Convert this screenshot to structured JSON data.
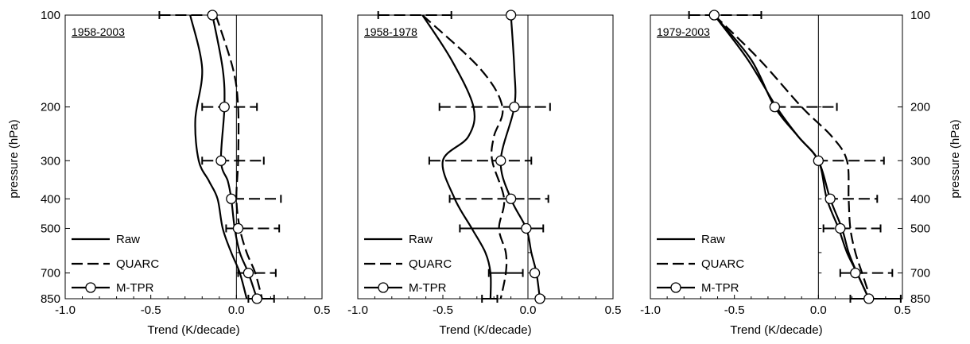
{
  "figure": {
    "left_ylabel": "pressure (hPa)",
    "right_ylabel": "pressure (hPa)",
    "xlabel": "Trend (K/decade)"
  },
  "chart_data": [
    {
      "type": "line",
      "title": "1958-2003",
      "xlabel": "Trend (K/decade)",
      "ylabel": "pressure (hPa)",
      "xlim": [
        -1.0,
        0.5
      ],
      "ylim": [
        100,
        850
      ],
      "y_scale": "log",
      "x_ticks": [
        -1.0,
        -0.5,
        0.0,
        0.5
      ],
      "x_tick_labels": [
        "-1.0",
        "-0.5",
        "0.0",
        "0.5"
      ],
      "y_ticks": [
        100,
        200,
        300,
        400,
        500,
        700,
        850
      ],
      "y_tick_labels": [
        "100",
        "200",
        "300",
        "400",
        "500",
        "700",
        "850"
      ],
      "reference_line_x": 0,
      "legend": "bottom-left",
      "series": [
        {
          "name": "Raw",
          "style": "solid",
          "x": [
            -0.27,
            -0.2,
            -0.24,
            -0.22,
            -0.16,
            -0.11,
            -0.08,
            -0.03,
            0.02,
            0.06
          ],
          "y": [
            100,
            150,
            220,
            300,
            350,
            400,
            500,
            600,
            700,
            850
          ]
        },
        {
          "name": "QUARC",
          "style": "dashed",
          "x": [
            -0.12,
            -0.02,
            0.01,
            0.01,
            0.0,
            0.02,
            0.06,
            0.11,
            0.15
          ],
          "y": [
            100,
            150,
            200,
            300,
            400,
            500,
            600,
            700,
            850
          ]
        },
        {
          "name": "M-TPR",
          "style": "line-circle",
          "x": [
            -0.14,
            -0.08,
            -0.07,
            -0.09,
            -0.05,
            -0.03,
            -0.01,
            0.02,
            0.07,
            0.12
          ],
          "y": [
            100,
            150,
            200,
            300,
            350,
            400,
            500,
            600,
            700,
            850
          ]
        }
      ],
      "error_bars": [
        {
          "y": 100,
          "x": [
            -0.45,
            -0.14
          ],
          "style": "dashed"
        },
        {
          "y": 200,
          "x": [
            -0.2,
            0.12
          ],
          "style": "dashed"
        },
        {
          "y": 300,
          "x": [
            -0.2,
            0.16
          ],
          "style": "dashed"
        },
        {
          "y": 400,
          "x": [
            -0.02,
            0.26
          ],
          "style": "dashed"
        },
        {
          "y": 500,
          "x": [
            -0.06,
            0.25
          ],
          "style": "dashed"
        },
        {
          "y": 700,
          "x": [
            0.01,
            0.23
          ],
          "style": "dashed"
        },
        {
          "y": 850,
          "x": [
            0.07,
            0.22
          ],
          "style": "solid"
        }
      ],
      "markers": [
        {
          "x": -0.14,
          "y": 100
        },
        {
          "x": -0.07,
          "y": 200
        },
        {
          "x": -0.09,
          "y": 300
        },
        {
          "x": -0.03,
          "y": 400
        },
        {
          "x": 0.01,
          "y": 500
        },
        {
          "x": 0.07,
          "y": 700
        },
        {
          "x": 0.12,
          "y": 850
        }
      ]
    },
    {
      "type": "line",
      "title": "1958-1978",
      "xlabel": "Trend (K/decade)",
      "ylabel": "",
      "xlim": [
        -1.0,
        0.5
      ],
      "ylim": [
        100,
        850
      ],
      "y_scale": "log",
      "x_ticks": [
        -1.0,
        -0.5,
        0.0,
        0.5
      ],
      "x_tick_labels": [
        "-1.0",
        "-0.5",
        "0.0",
        "0.5"
      ],
      "reference_line_x": 0,
      "legend": "bottom-left",
      "series": [
        {
          "name": "Raw",
          "style": "solid",
          "x": [
            -0.62,
            -0.45,
            -0.32,
            -0.35,
            -0.5,
            -0.43,
            -0.33,
            -0.25,
            -0.22,
            -0.22
          ],
          "y": [
            100,
            140,
            200,
            250,
            300,
            400,
            500,
            600,
            700,
            850
          ]
        },
        {
          "name": "QUARC",
          "style": "dashed",
          "x": [
            -0.62,
            -0.28,
            -0.15,
            -0.2,
            -0.21,
            -0.14,
            -0.17,
            -0.13,
            -0.13,
            -0.16
          ],
          "y": [
            100,
            150,
            200,
            250,
            300,
            400,
            500,
            600,
            700,
            850
          ]
        },
        {
          "name": "M-TPR",
          "style": "line-circle",
          "x": [
            -0.1,
            -0.08,
            -0.08,
            -0.16,
            -0.1,
            -0.01,
            0.02,
            0.05,
            0.07
          ],
          "y": [
            100,
            150,
            200,
            300,
            400,
            500,
            600,
            700,
            850
          ]
        }
      ],
      "error_bars": [
        {
          "y": 100,
          "x": [
            -0.88,
            -0.45
          ],
          "style": "dashed"
        },
        {
          "y": 200,
          "x": [
            -0.52,
            0.13
          ],
          "style": "dashed"
        },
        {
          "y": 300,
          "x": [
            -0.58,
            0.02
          ],
          "style": "dashed"
        },
        {
          "y": 400,
          "x": [
            -0.46,
            0.12
          ],
          "style": "dashed"
        },
        {
          "y": 500,
          "x": [
            -0.4,
            0.09
          ],
          "style": "solid"
        },
        {
          "y": 700,
          "x": [
            -0.23,
            -0.03
          ],
          "style": "solid"
        },
        {
          "y": 850,
          "x": [
            -0.27,
            -0.18
          ],
          "style": "solid"
        }
      ],
      "markers": [
        {
          "x": -0.1,
          "y": 100
        },
        {
          "x": -0.08,
          "y": 200
        },
        {
          "x": -0.16,
          "y": 300
        },
        {
          "x": -0.1,
          "y": 400
        },
        {
          "x": -0.01,
          "y": 500
        },
        {
          "x": 0.04,
          "y": 700
        },
        {
          "x": 0.07,
          "y": 850
        }
      ]
    },
    {
      "type": "line",
      "title": "1979-2003",
      "xlabel": "Trend (K/decade)",
      "ylabel": "pressure (hPa)",
      "xlim": [
        -1.0,
        0.5
      ],
      "ylim": [
        100,
        850
      ],
      "y_scale": "log",
      "x_ticks": [
        -1.0,
        -0.5,
        0.0,
        0.5
      ],
      "x_tick_labels": [
        "-1.0",
        "-0.5",
        "0.0",
        "0.5"
      ],
      "y_ticks": [
        100,
        200,
        300,
        400,
        500,
        700,
        850
      ],
      "y_tick_labels": [
        "100",
        "200",
        "300",
        "400",
        "500",
        "700",
        "850"
      ],
      "reference_line_x": 0,
      "legend": "bottom-left",
      "series": [
        {
          "name": "Raw",
          "style": "solid",
          "x": [
            -0.62,
            -0.42,
            -0.25,
            -0.12,
            0.0,
            0.05,
            0.12,
            0.17,
            0.23,
            0.3
          ],
          "y": [
            100,
            140,
            200,
            250,
            300,
            400,
            500,
            600,
            700,
            850
          ]
        },
        {
          "name": "QUARC",
          "style": "dashed",
          "x": [
            -0.62,
            -0.35,
            -0.1,
            0.08,
            0.17,
            0.18,
            0.19,
            0.22,
            0.26,
            0.31
          ],
          "y": [
            100,
            140,
            200,
            250,
            300,
            400,
            500,
            600,
            700,
            850
          ]
        },
        {
          "name": "M-TPR",
          "style": "line-circle",
          "x": [
            -0.62,
            -0.4,
            -0.26,
            -0.12,
            0.0,
            0.07,
            0.14,
            0.18,
            0.23,
            0.3
          ],
          "y": [
            100,
            140,
            200,
            250,
            300,
            400,
            500,
            600,
            700,
            850
          ]
        }
      ],
      "error_bars": [
        {
          "y": 100,
          "x": [
            -0.77,
            -0.34
          ],
          "style": "dashed"
        },
        {
          "y": 200,
          "x": [
            -0.26,
            0.11
          ],
          "style": "dashed"
        },
        {
          "y": 300,
          "x": [
            -0.01,
            0.39
          ],
          "style": "dashed"
        },
        {
          "y": 400,
          "x": [
            0.05,
            0.35
          ],
          "style": "dashed"
        },
        {
          "y": 500,
          "x": [
            0.03,
            0.37
          ],
          "style": "dashed"
        },
        {
          "y": 700,
          "x": [
            0.13,
            0.44
          ],
          "style": "dashed"
        },
        {
          "y": 850,
          "x": [
            0.19,
            0.49
          ],
          "style": "solid"
        }
      ],
      "markers": [
        {
          "x": -0.62,
          "y": 100
        },
        {
          "x": -0.26,
          "y": 200
        },
        {
          "x": 0.0,
          "y": 300
        },
        {
          "x": 0.07,
          "y": 400
        },
        {
          "x": 0.13,
          "y": 500
        },
        {
          "x": 0.22,
          "y": 700
        },
        {
          "x": 0.3,
          "y": 850
        }
      ]
    }
  ]
}
